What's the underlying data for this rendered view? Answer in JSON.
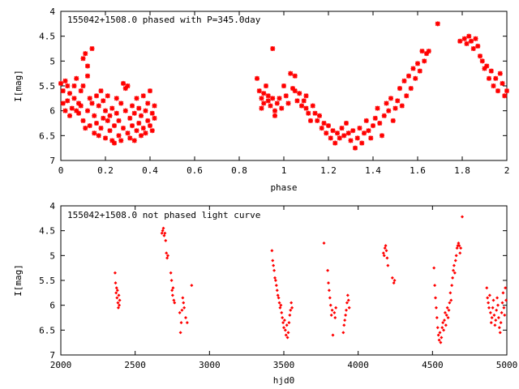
{
  "chart_data": [
    {
      "type": "scatter",
      "title": "155042+1508.0 phased with P=345.0day",
      "xlabel": "phase",
      "ylabel": "I[mag]",
      "xlim": [
        0,
        2
      ],
      "ylim": [
        7,
        4
      ],
      "y_inverted": true,
      "xticks": [
        "0",
        "0.2",
        "0.4",
        "0.6",
        "0.8",
        "1",
        "1.2",
        "1.4",
        "1.6",
        "1.8",
        "2"
      ],
      "yticks": [
        "4",
        "4.5",
        "5",
        "5.5",
        "6",
        "6.5",
        "7"
      ],
      "color": "#ff0000",
      "marker": "star",
      "points": [
        [
          0.0,
          5.45
        ],
        [
          0.01,
          5.6
        ],
        [
          0.01,
          5.85
        ],
        [
          0.02,
          5.4
        ],
        [
          0.02,
          6.0
        ],
        [
          0.03,
          5.5
        ],
        [
          0.03,
          5.8
        ],
        [
          0.04,
          6.1
        ],
        [
          0.04,
          5.65
        ],
        [
          0.05,
          5.95
        ],
        [
          0.06,
          5.5
        ],
        [
          0.06,
          5.75
        ],
        [
          0.07,
          6.0
        ],
        [
          0.07,
          5.35
        ],
        [
          0.08,
          5.85
        ],
        [
          0.08,
          6.05
        ],
        [
          0.09,
          5.6
        ],
        [
          0.09,
          5.9
        ],
        [
          0.1,
          6.2
        ],
        [
          0.1,
          5.5
        ],
        [
          0.1,
          4.95
        ],
        [
          0.11,
          4.85
        ],
        [
          0.11,
          6.35
        ],
        [
          0.12,
          5.3
        ],
        [
          0.12,
          6.0
        ],
        [
          0.12,
          5.1
        ],
        [
          0.13,
          5.75
        ],
        [
          0.13,
          6.3
        ],
        [
          0.14,
          4.75
        ],
        [
          0.14,
          5.85
        ],
        [
          0.15,
          6.1
        ],
        [
          0.15,
          6.45
        ],
        [
          0.16,
          5.7
        ],
        [
          0.16,
          6.25
        ],
        [
          0.17,
          5.9
        ],
        [
          0.17,
          6.5
        ],
        [
          0.18,
          6.35
        ],
        [
          0.18,
          5.6
        ],
        [
          0.19,
          6.15
        ],
        [
          0.19,
          5.8
        ],
        [
          0.2,
          6.55
        ],
        [
          0.2,
          6.0
        ],
        [
          0.21,
          6.2
        ],
        [
          0.21,
          5.7
        ],
        [
          0.22,
          6.4
        ],
        [
          0.22,
          6.1
        ],
        [
          0.23,
          6.6
        ],
        [
          0.23,
          5.95
        ],
        [
          0.24,
          6.3
        ],
        [
          0.24,
          6.65
        ],
        [
          0.25,
          6.05
        ],
        [
          0.25,
          5.75
        ],
        [
          0.26,
          6.5
        ],
        [
          0.26,
          6.2
        ],
        [
          0.27,
          5.85
        ],
        [
          0.27,
          6.6
        ],
        [
          0.28,
          6.35
        ],
        [
          0.28,
          5.45
        ],
        [
          0.29,
          6.0
        ],
        [
          0.29,
          5.55
        ],
        [
          0.3,
          6.45
        ],
        [
          0.3,
          5.5
        ],
        [
          0.31,
          6.15
        ],
        [
          0.31,
          6.55
        ],
        [
          0.32,
          5.9
        ],
        [
          0.32,
          6.3
        ],
        [
          0.33,
          6.6
        ],
        [
          0.33,
          6.05
        ],
        [
          0.34,
          5.75
        ],
        [
          0.34,
          6.4
        ],
        [
          0.35,
          6.25
        ],
        [
          0.35,
          5.95
        ],
        [
          0.36,
          6.5
        ],
        [
          0.36,
          6.1
        ],
        [
          0.37,
          5.7
        ],
        [
          0.37,
          6.35
        ],
        [
          0.38,
          6.0
        ],
        [
          0.38,
          6.45
        ],
        [
          0.39,
          5.85
        ],
        [
          0.39,
          6.2
        ],
        [
          0.4,
          5.6
        ],
        [
          0.4,
          6.3
        ],
        [
          0.41,
          6.05
        ],
        [
          0.41,
          6.4
        ],
        [
          0.42,
          6.15
        ],
        [
          0.42,
          5.9
        ],
        [
          0.88,
          5.35
        ],
        [
          0.89,
          5.6
        ],
        [
          0.9,
          5.75
        ],
        [
          0.9,
          5.95
        ],
        [
          0.91,
          5.65
        ],
        [
          0.91,
          5.85
        ],
        [
          0.92,
          5.5
        ],
        [
          0.93,
          5.8
        ],
        [
          0.93,
          5.7
        ],
        [
          0.94,
          5.9
        ],
        [
          0.95,
          4.75
        ],
        [
          0.95,
          5.75
        ],
        [
          0.96,
          6.0
        ],
        [
          0.96,
          6.1
        ],
        [
          0.97,
          5.85
        ],
        [
          0.98,
          5.75
        ],
        [
          0.99,
          5.95
        ],
        [
          1.0,
          5.5
        ],
        [
          1.01,
          5.7
        ],
        [
          1.02,
          5.85
        ],
        [
          1.03,
          5.25
        ],
        [
          1.04,
          5.55
        ],
        [
          1.05,
          5.6
        ],
        [
          1.05,
          5.3
        ],
        [
          1.06,
          5.8
        ],
        [
          1.07,
          5.65
        ],
        [
          1.08,
          5.9
        ],
        [
          1.09,
          5.8
        ],
        [
          1.1,
          5.95
        ],
        [
          1.1,
          5.7
        ],
        [
          1.11,
          6.05
        ],
        [
          1.12,
          6.2
        ],
        [
          1.13,
          5.9
        ],
        [
          1.14,
          6.05
        ],
        [
          1.15,
          6.2
        ],
        [
          1.16,
          6.1
        ],
        [
          1.17,
          6.35
        ],
        [
          1.18,
          6.25
        ],
        [
          1.19,
          6.45
        ],
        [
          1.2,
          6.3
        ],
        [
          1.21,
          6.55
        ],
        [
          1.22,
          6.4
        ],
        [
          1.23,
          6.65
        ],
        [
          1.24,
          6.45
        ],
        [
          1.25,
          6.55
        ],
        [
          1.26,
          6.35
        ],
        [
          1.27,
          6.5
        ],
        [
          1.28,
          6.25
        ],
        [
          1.29,
          6.45
        ],
        [
          1.3,
          6.6
        ],
        [
          1.31,
          6.4
        ],
        [
          1.32,
          6.75
        ],
        [
          1.33,
          6.55
        ],
        [
          1.34,
          6.35
        ],
        [
          1.35,
          6.65
        ],
        [
          1.36,
          6.45
        ],
        [
          1.37,
          6.2
        ],
        [
          1.38,
          6.4
        ],
        [
          1.39,
          6.55
        ],
        [
          1.4,
          6.3
        ],
        [
          1.41,
          6.15
        ],
        [
          1.42,
          5.95
        ],
        [
          1.43,
          6.25
        ],
        [
          1.44,
          6.5
        ],
        [
          1.45,
          6.1
        ],
        [
          1.46,
          5.85
        ],
        [
          1.47,
          6.0
        ],
        [
          1.48,
          5.75
        ],
        [
          1.49,
          6.2
        ],
        [
          1.5,
          5.95
        ],
        [
          1.51,
          5.8
        ],
        [
          1.52,
          5.55
        ],
        [
          1.53,
          5.9
        ],
        [
          1.54,
          5.4
        ],
        [
          1.55,
          5.7
        ],
        [
          1.56,
          5.3
        ],
        [
          1.57,
          5.55
        ],
        [
          1.58,
          5.15
        ],
        [
          1.59,
          5.35
        ],
        [
          1.6,
          5.05
        ],
        [
          1.61,
          5.2
        ],
        [
          1.62,
          4.8
        ],
        [
          1.63,
          5.0
        ],
        [
          1.64,
          4.85
        ],
        [
          1.65,
          4.8
        ],
        [
          1.69,
          4.25
        ],
        [
          1.79,
          4.6
        ],
        [
          1.81,
          4.55
        ],
        [
          1.82,
          4.65
        ],
        [
          1.83,
          4.5
        ],
        [
          1.84,
          4.6
        ],
        [
          1.85,
          4.75
        ],
        [
          1.86,
          4.55
        ],
        [
          1.87,
          4.7
        ],
        [
          1.88,
          4.9
        ],
        [
          1.89,
          5.0
        ],
        [
          1.9,
          5.15
        ],
        [
          1.91,
          5.1
        ],
        [
          1.92,
          5.35
        ],
        [
          1.93,
          5.2
        ],
        [
          1.94,
          5.5
        ],
        [
          1.95,
          5.35
        ],
        [
          1.96,
          5.6
        ],
        [
          1.97,
          5.25
        ],
        [
          1.98,
          5.45
        ],
        [
          1.99,
          5.7
        ],
        [
          2.0,
          5.6
        ]
      ]
    },
    {
      "type": "scatter",
      "title": "155042+1508.0 not phased light curve",
      "xlabel": "hjd0",
      "ylabel": "I[mag]",
      "xlim": [
        2000,
        5000
      ],
      "ylim": [
        7,
        4
      ],
      "y_inverted": true,
      "xticks": [
        "2000",
        "2500",
        "3000",
        "3500",
        "4000",
        "4500",
        "5000"
      ],
      "yticks": [
        "4",
        "4.5",
        "5",
        "5.5",
        "6",
        "6.5",
        "7"
      ],
      "color": "#ff0000",
      "marker": "diamond",
      "points": [
        [
          2365,
          5.35
        ],
        [
          2368,
          5.55
        ],
        [
          2372,
          5.75
        ],
        [
          2375,
          5.65
        ],
        [
          2378,
          5.85
        ],
        [
          2381,
          5.7
        ],
        [
          2384,
          5.95
        ],
        [
          2387,
          6.05
        ],
        [
          2390,
          5.8
        ],
        [
          2393,
          6.0
        ],
        [
          2396,
          5.9
        ],
        [
          2680,
          4.55
        ],
        [
          2685,
          4.5
        ],
        [
          2690,
          4.45
        ],
        [
          2695,
          4.6
        ],
        [
          2700,
          4.55
        ],
        [
          2705,
          4.7
        ],
        [
          2710,
          4.95
        ],
        [
          2715,
          5.05
        ],
        [
          2720,
          5.0
        ],
        [
          2740,
          5.35
        ],
        [
          2745,
          5.5
        ],
        [
          2748,
          5.7
        ],
        [
          2752,
          5.8
        ],
        [
          2755,
          5.65
        ],
        [
          2760,
          5.9
        ],
        [
          2765,
          5.95
        ],
        [
          2800,
          6.15
        ],
        [
          2805,
          6.55
        ],
        [
          2810,
          6.35
        ],
        [
          2815,
          6.1
        ],
        [
          2820,
          5.85
        ],
        [
          2825,
          5.95
        ],
        [
          2830,
          6.05
        ],
        [
          2840,
          6.25
        ],
        [
          2850,
          6.35
        ],
        [
          2880,
          5.6
        ],
        [
          3420,
          4.9
        ],
        [
          3425,
          5.1
        ],
        [
          3430,
          5.2
        ],
        [
          3435,
          5.3
        ],
        [
          3440,
          5.45
        ],
        [
          3445,
          5.5
        ],
        [
          3450,
          5.6
        ],
        [
          3455,
          5.7
        ],
        [
          3460,
          5.8
        ],
        [
          3465,
          5.85
        ],
        [
          3470,
          5.95
        ],
        [
          3475,
          6.05
        ],
        [
          3480,
          6.0
        ],
        [
          3485,
          6.15
        ],
        [
          3490,
          6.25
        ],
        [
          3495,
          6.35
        ],
        [
          3500,
          6.45
        ],
        [
          3505,
          6.3
        ],
        [
          3510,
          6.5
        ],
        [
          3515,
          6.6
        ],
        [
          3520,
          6.4
        ],
        [
          3525,
          6.65
        ],
        [
          3530,
          6.55
        ],
        [
          3535,
          6.35
        ],
        [
          3540,
          6.2
        ],
        [
          3545,
          6.1
        ],
        [
          3550,
          5.95
        ],
        [
          3555,
          6.05
        ],
        [
          3770,
          4.75
        ],
        [
          3795,
          5.3
        ],
        [
          3800,
          5.55
        ],
        [
          3805,
          5.7
        ],
        [
          3810,
          5.85
        ],
        [
          3815,
          6.0
        ],
        [
          3820,
          6.2
        ],
        [
          3825,
          6.1
        ],
        [
          3830,
          6.6
        ],
        [
          3840,
          6.15
        ],
        [
          3845,
          6.25
        ],
        [
          3850,
          6.05
        ],
        [
          3900,
          6.55
        ],
        [
          3905,
          6.4
        ],
        [
          3910,
          6.3
        ],
        [
          3915,
          6.2
        ],
        [
          3920,
          6.1
        ],
        [
          3925,
          5.95
        ],
        [
          3930,
          5.8
        ],
        [
          3935,
          5.9
        ],
        [
          3940,
          6.05
        ],
        [
          4170,
          4.95
        ],
        [
          4175,
          5.0
        ],
        [
          4180,
          4.85
        ],
        [
          4185,
          4.8
        ],
        [
          4190,
          4.9
        ],
        [
          4195,
          5.05
        ],
        [
          4200,
          5.2
        ],
        [
          4230,
          5.45
        ],
        [
          4240,
          5.55
        ],
        [
          4245,
          5.5
        ],
        [
          4510,
          5.25
        ],
        [
          4515,
          5.6
        ],
        [
          4520,
          5.85
        ],
        [
          4525,
          6.05
        ],
        [
          4530,
          6.25
        ],
        [
          4535,
          6.45
        ],
        [
          4540,
          6.6
        ],
        [
          4545,
          6.7
        ],
        [
          4550,
          6.55
        ],
        [
          4555,
          6.75
        ],
        [
          4560,
          6.65
        ],
        [
          4565,
          6.45
        ],
        [
          4570,
          6.35
        ],
        [
          4575,
          6.5
        ],
        [
          4580,
          6.3
        ],
        [
          4585,
          6.15
        ],
        [
          4590,
          6.4
        ],
        [
          4595,
          6.2
        ],
        [
          4600,
          6.05
        ],
        [
          4605,
          6.25
        ],
        [
          4610,
          6.1
        ],
        [
          4615,
          5.95
        ],
        [
          4620,
          5.75
        ],
        [
          4625,
          5.9
        ],
        [
          4630,
          5.6
        ],
        [
          4635,
          5.45
        ],
        [
          4640,
          5.3
        ],
        [
          4645,
          5.2
        ],
        [
          4650,
          5.35
        ],
        [
          4655,
          5.1
        ],
        [
          4660,
          5.0
        ],
        [
          4665,
          4.85
        ],
        [
          4670,
          4.8
        ],
        [
          4675,
          4.75
        ],
        [
          4680,
          4.8
        ],
        [
          4685,
          4.95
        ],
        [
          4690,
          4.85
        ],
        [
          4700,
          4.22
        ],
        [
          4865,
          5.65
        ],
        [
          4870,
          5.85
        ],
        [
          4875,
          5.95
        ],
        [
          4880,
          6.05
        ],
        [
          4885,
          5.8
        ],
        [
          4890,
          6.15
        ],
        [
          4895,
          6.35
        ],
        [
          4900,
          6.25
        ],
        [
          4905,
          6.05
        ],
        [
          4910,
          5.9
        ],
        [
          4915,
          6.2
        ],
        [
          4920,
          6.4
        ],
        [
          4925,
          6.3
        ],
        [
          4930,
          6.1
        ],
        [
          4935,
          5.85
        ],
        [
          4940,
          6.0
        ],
        [
          4945,
          6.25
        ],
        [
          4950,
          6.45
        ],
        [
          4955,
          6.55
        ],
        [
          4960,
          6.35
        ],
        [
          4965,
          6.15
        ],
        [
          4970,
          5.95
        ],
        [
          4975,
          5.75
        ],
        [
          4980,
          6.05
        ],
        [
          4985,
          6.2
        ],
        [
          4990,
          5.65
        ],
        [
          4995,
          5.9
        ]
      ]
    }
  ]
}
